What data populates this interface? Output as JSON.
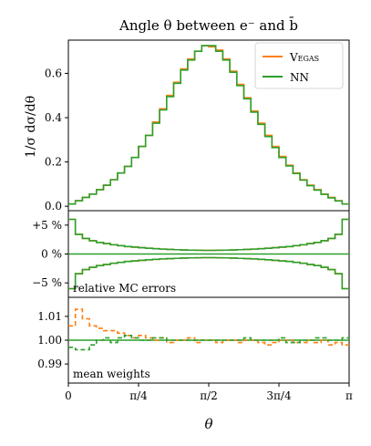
{
  "chart_data": [
    {
      "panel": "distribution",
      "type": "line",
      "step": true,
      "title": "Angle θ between e⁻ and b̄",
      "ylabel": "1/σ dσ/dθ",
      "xlabel": "θ",
      "xlim": [
        0,
        3.14159
      ],
      "ylim": [
        -0.02,
        0.75
      ],
      "y_ticks": [
        0.0,
        0.2,
        0.4,
        0.6
      ],
      "y_tick_labels": [
        "0.0",
        "0.2",
        "0.4",
        "0.6"
      ],
      "legend": {
        "position": "top-right",
        "entries": [
          "Vegas",
          "NN"
        ]
      },
      "bins": 40,
      "series": [
        {
          "name": "Vegas",
          "color": "#ff7f0e",
          "values": [
            0.01,
            0.025,
            0.04,
            0.055,
            0.075,
            0.095,
            0.12,
            0.15,
            0.18,
            0.22,
            0.27,
            0.32,
            0.38,
            0.44,
            0.5,
            0.56,
            0.62,
            0.665,
            0.7,
            0.725,
            0.72,
            0.705,
            0.665,
            0.61,
            0.55,
            0.49,
            0.43,
            0.375,
            0.32,
            0.27,
            0.225,
            0.185,
            0.15,
            0.12,
            0.095,
            0.075,
            0.055,
            0.04,
            0.025,
            0.01
          ]
        },
        {
          "name": "NN",
          "color": "#2ca02c",
          "values": [
            0.01,
            0.025,
            0.04,
            0.055,
            0.075,
            0.095,
            0.12,
            0.15,
            0.18,
            0.22,
            0.27,
            0.32,
            0.375,
            0.435,
            0.495,
            0.555,
            0.615,
            0.66,
            0.7,
            0.725,
            0.725,
            0.7,
            0.66,
            0.605,
            0.545,
            0.485,
            0.425,
            0.37,
            0.315,
            0.265,
            0.22,
            0.182,
            0.148,
            0.118,
            0.093,
            0.073,
            0.054,
            0.038,
            0.024,
            0.01
          ]
        }
      ]
    },
    {
      "panel": "relative-errors",
      "type": "line",
      "step": true,
      "annotation": "relative MC errors",
      "ylim": [
        -7.5,
        7.5
      ],
      "y_ticks": [
        5,
        0,
        -5
      ],
      "y_tick_labels": [
        "+5 %",
        "0 %",
        "−5 %"
      ],
      "reference_line": 0,
      "series": [
        {
          "name": "Vegas",
          "color": "#ff7f0e",
          "values": [
            6.0,
            3.4,
            2.7,
            2.3,
            2.0,
            1.8,
            1.6,
            1.45,
            1.3,
            1.2,
            1.1,
            1.0,
            0.92,
            0.85,
            0.8,
            0.75,
            0.7,
            0.67,
            0.65,
            0.63,
            0.63,
            0.65,
            0.67,
            0.7,
            0.75,
            0.8,
            0.85,
            0.92,
            1.0,
            1.1,
            1.2,
            1.3,
            1.45,
            1.6,
            1.8,
            2.0,
            2.3,
            2.7,
            3.4,
            6.0
          ]
        },
        {
          "name": "NN",
          "color": "#2ca02c",
          "values": [
            6.0,
            3.4,
            2.7,
            2.3,
            2.0,
            1.8,
            1.6,
            1.45,
            1.3,
            1.2,
            1.1,
            1.0,
            0.92,
            0.85,
            0.8,
            0.75,
            0.7,
            0.67,
            0.65,
            0.63,
            0.63,
            0.65,
            0.67,
            0.7,
            0.75,
            0.8,
            0.85,
            0.92,
            1.0,
            1.1,
            1.2,
            1.3,
            1.45,
            1.6,
            1.8,
            2.0,
            2.3,
            2.7,
            3.4,
            6.0
          ]
        }
      ]
    },
    {
      "panel": "mean-weights",
      "type": "line",
      "step": true,
      "dashed": true,
      "annotation": "mean weights",
      "ylim": [
        0.982,
        1.018
      ],
      "y_ticks": [
        1.01,
        1.0,
        0.99
      ],
      "y_tick_labels": [
        "1.01",
        "1.00",
        "0.99"
      ],
      "reference_line": 1.0,
      "x_ticks": [
        0,
        0.7854,
        1.5708,
        2.3562,
        3.14159
      ],
      "x_tick_labels": [
        "0",
        "π/4",
        "π/2",
        "3π/4",
        "π"
      ],
      "series": [
        {
          "name": "Vegas",
          "color": "#ff7f0e",
          "values": [
            1.006,
            1.013,
            1.009,
            1.006,
            1.005,
            1.004,
            1.004,
            1.003,
            1.002,
            1.001,
            1.002,
            1.001,
            1.0,
            1.001,
            0.999,
            1.0,
            1.0,
            1.001,
            0.999,
            1.0,
            1.0,
            0.999,
            1.0,
            1.0,
            0.999,
            1.0,
            1.0,
            0.999,
            0.998,
            0.999,
            1.0,
            1.0,
            0.999,
            0.999,
            1.0,
            0.999,
            1.0,
            0.998,
            0.999,
            0.998
          ]
        },
        {
          "name": "NN",
          "color": "#2ca02c",
          "values": [
            0.997,
            0.996,
            0.996,
            0.998,
            1.0,
            1.001,
            0.999,
            1.001,
            1.002,
            1.001,
            1.0,
            1.0,
            1.001,
            1.001,
            1.0,
            1.0,
            1.0,
            1.0,
            1.0,
            1.0,
            1.0,
            1.0,
            1.0,
            1.0,
            1.0,
            1.001,
            1.0,
            1.0,
            1.0,
            1.0,
            1.001,
            0.999,
            0.999,
            1.0,
            1.0,
            1.001,
            1.001,
            1.0,
            1.0,
            1.001
          ]
        }
      ]
    }
  ]
}
